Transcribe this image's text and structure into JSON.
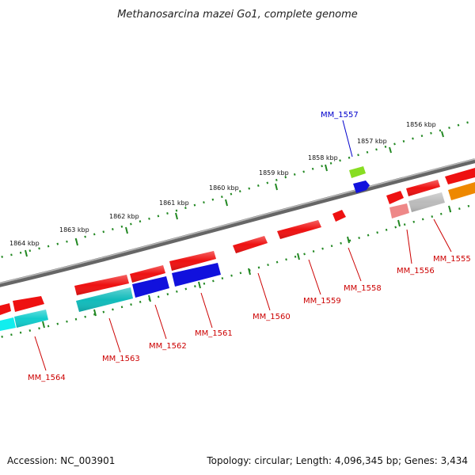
{
  "title": "Methanosarcina mazei Go1, complete genome",
  "footer": {
    "accession": "Accession: NC_003901",
    "summary": "Topology: circular; Length: 4,096,345 bp; Genes: 3,434"
  },
  "ruler_labels": [
    "1856 kbp",
    "1857 kbp",
    "1858 kbp",
    "1859 kbp",
    "1860 kbp",
    "1861 kbp",
    "1862 kbp",
    "1863 kbp",
    "1864 kbp"
  ],
  "gene_labels": [
    "MM_1557",
    "MM_1555",
    "MM_1556",
    "MM_1558",
    "MM_1559",
    "MM_1560",
    "MM_1561",
    "MM_1562",
    "MM_1563",
    "MM_1564"
  ],
  "colors": {
    "red": "#ee1111",
    "blue": "#1111dd",
    "cyan": "#11cccc",
    "teal": "#11bbbb",
    "green": "#88dd22",
    "gray": "#bbbbbb",
    "orange": "#ee8800",
    "pink": "#ee8888",
    "backbone": "#777777",
    "tick": "#228822",
    "label_red": "#cc0000",
    "label_blue": "#0000cc"
  }
}
